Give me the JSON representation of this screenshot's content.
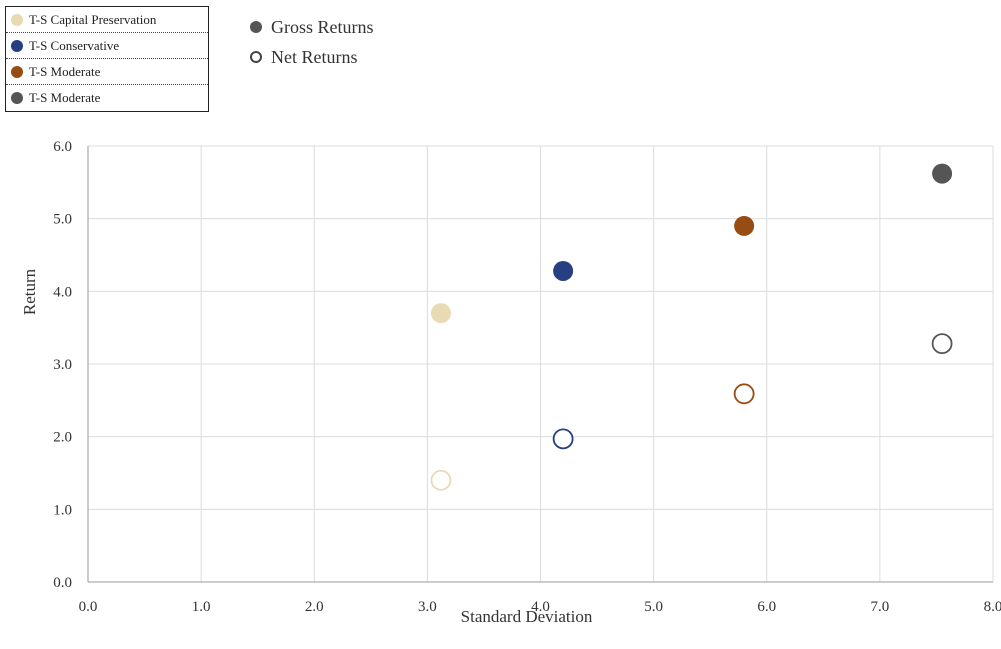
{
  "chart_data": {
    "type": "scatter",
    "xlabel": "Standard Deviation",
    "ylabel": "Return",
    "xlim": [
      0,
      8
    ],
    "ylim": [
      0,
      6
    ],
    "x_ticks": [
      "0.0",
      "1.0",
      "2.0",
      "3.0",
      "4.0",
      "5.0",
      "6.0",
      "7.0",
      "8.0"
    ],
    "y_ticks": [
      "0.0",
      "1.0",
      "2.0",
      "3.0",
      "4.0",
      "5.0",
      "6.0"
    ],
    "grid": true,
    "marker_legend": [
      {
        "label": "Gross Returns",
        "style": "filled"
      },
      {
        "label": "Net Returns",
        "style": "hollow"
      }
    ],
    "series": [
      {
        "name": "T-S Capital Preservation",
        "color": "#e8dab2",
        "gross": {
          "x": 3.12,
          "y": 3.7
        },
        "net": {
          "x": 3.12,
          "y": 1.4
        }
      },
      {
        "name": "T-S Conservative",
        "color": "#263f82",
        "gross": {
          "x": 4.2,
          "y": 4.28
        },
        "net": {
          "x": 4.2,
          "y": 1.97
        }
      },
      {
        "name": "T-S Moderate",
        "color": "#974c12",
        "gross": {
          "x": 5.8,
          "y": 4.9
        },
        "net": {
          "x": 5.8,
          "y": 2.59
        }
      },
      {
        "name": "T-S Moderate",
        "color": "#555555",
        "gross": {
          "x": 7.55,
          "y": 5.62
        },
        "net": {
          "x": 7.55,
          "y": 3.28
        }
      }
    ]
  }
}
